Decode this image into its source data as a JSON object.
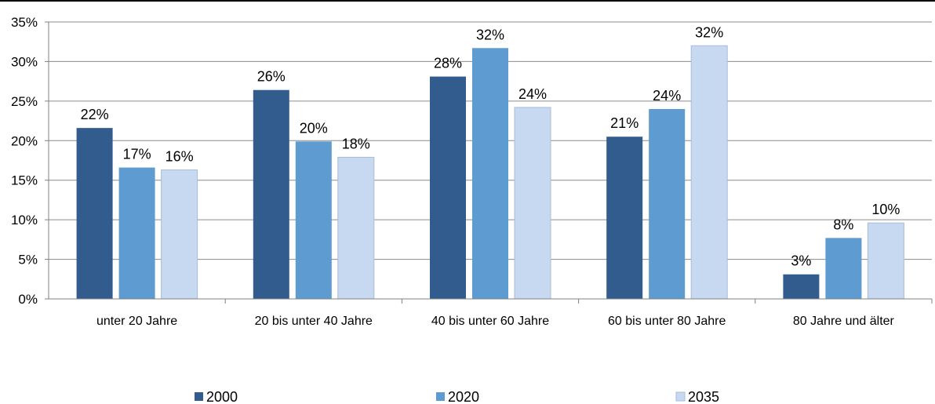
{
  "chart_data": {
    "type": "bar",
    "title": "",
    "xlabel": "",
    "ylabel": "",
    "ylim": [
      0,
      35
    ],
    "y_ticks": [
      "0%",
      "5%",
      "10%",
      "15%",
      "20%",
      "25%",
      "30%",
      "35%"
    ],
    "y_tick_values": [
      0,
      5,
      10,
      15,
      20,
      25,
      30,
      35
    ],
    "grid": true,
    "legend_position": "bottom",
    "categories": [
      "unter 20 Jahre",
      "20 bis unter 40 Jahre",
      "40 bis unter 60 Jahre",
      "60 bis unter 80 Jahre",
      "80 Jahre und älter"
    ],
    "series": [
      {
        "name": "2000",
        "color": "#335c8e",
        "values": [
          21.6,
          26.4,
          28.1,
          20.5,
          3.1
        ],
        "labels": [
          "22%",
          "26%",
          "28%",
          "21%",
          "3%"
        ]
      },
      {
        "name": "2020",
        "color": "#5d9bd1",
        "values": [
          16.6,
          19.9,
          31.7,
          24.0,
          7.7
        ],
        "labels": [
          "17%",
          "20%",
          "32%",
          "24%",
          "8%"
        ]
      },
      {
        "name": "2035",
        "color": "#c6d9f1",
        "values": [
          16.3,
          17.9,
          24.2,
          32.0,
          9.6
        ],
        "labels": [
          "16%",
          "18%",
          "24%",
          "32%",
          "10%"
        ]
      }
    ]
  }
}
